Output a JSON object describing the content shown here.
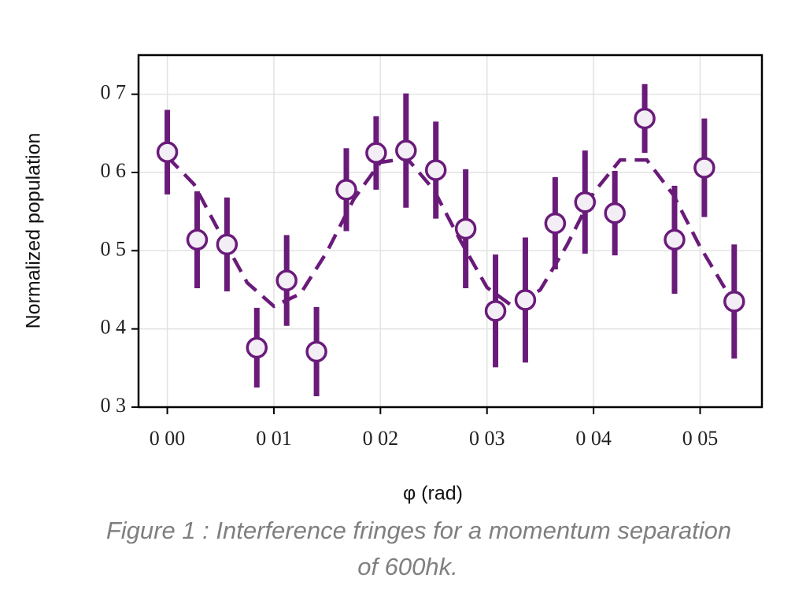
{
  "chart_data": {
    "type": "errorbar",
    "xlabel": "φ  (rad)",
    "ylabel": "Normalized population",
    "caption": [
      "Figure 1 : Interference fringes for a momentum separation",
      "of 600hk."
    ],
    "xlim": [
      -0.0027,
      0.0558
    ],
    "ylim": [
      0.3,
      0.75
    ],
    "xticks": [
      {
        "value": 0,
        "label": "0 00"
      },
      {
        "value": 0.01,
        "label": "0 01"
      },
      {
        "value": 0.02,
        "label": "0 02"
      },
      {
        "value": 0.03,
        "label": "0 03"
      },
      {
        "value": 0.04,
        "label": "0 04"
      },
      {
        "value": 0.05,
        "label": "0 05"
      }
    ],
    "yticks": [
      {
        "value": 0.3,
        "label": "0 3"
      },
      {
        "value": 0.4,
        "label": "0 4"
      },
      {
        "value": 0.5,
        "label": "0 5"
      },
      {
        "value": 0.6,
        "label": "0 6"
      },
      {
        "value": 0.7,
        "label": "0 7"
      }
    ],
    "grid": true,
    "series": [
      {
        "color": "#6a1b7a",
        "marker_fill": "#f3eef5",
        "x": [
          0,
          0.0028,
          0.0056,
          0.0084,
          0.0112,
          0.014,
          0.0168,
          0.0196,
          0.0224,
          0.0252,
          0.028,
          0.0308,
          0.0336,
          0.0364,
          0.0392,
          0.042,
          0.0448,
          0.0476,
          0.0504,
          0.0532
        ],
        "values": [
          0.626,
          0.514,
          0.508,
          0.376,
          0.462,
          0.371,
          0.578,
          0.625,
          0.628,
          0.603,
          0.528,
          0.423,
          0.437,
          0.535,
          0.562,
          0.548,
          0.669,
          0.514,
          0.606,
          0.435
        ],
        "errors": [
          0.054,
          0.062,
          0.06,
          0.051,
          0.058,
          0.057,
          0.053,
          0.047,
          0.073,
          0.062,
          0.076,
          0.072,
          0.08,
          0.059,
          0.066,
          0.054,
          0.044,
          0.069,
          0.063,
          0.073
        ]
      },
      {
        "color": "#6a1b7a",
        "style": "dashed",
        "x": [
          0,
          0.0025,
          0.005,
          0.0075,
          0.01,
          0.0125,
          0.015,
          0.0175,
          0.02,
          0.0225,
          0.025,
          0.0275,
          0.03,
          0.0325,
          0.035,
          0.0375,
          0.04,
          0.0425,
          0.045,
          0.0475,
          0.05,
          0.0525,
          0.053
        ],
        "values": [
          0.62,
          0.585,
          0.521,
          0.459,
          0.429,
          0.445,
          0.499,
          0.566,
          0.613,
          0.618,
          0.578,
          0.513,
          0.453,
          0.428,
          0.45,
          0.507,
          0.574,
          0.616,
          0.616,
          0.571,
          0.505,
          0.448,
          0.44
        ]
      }
    ]
  }
}
